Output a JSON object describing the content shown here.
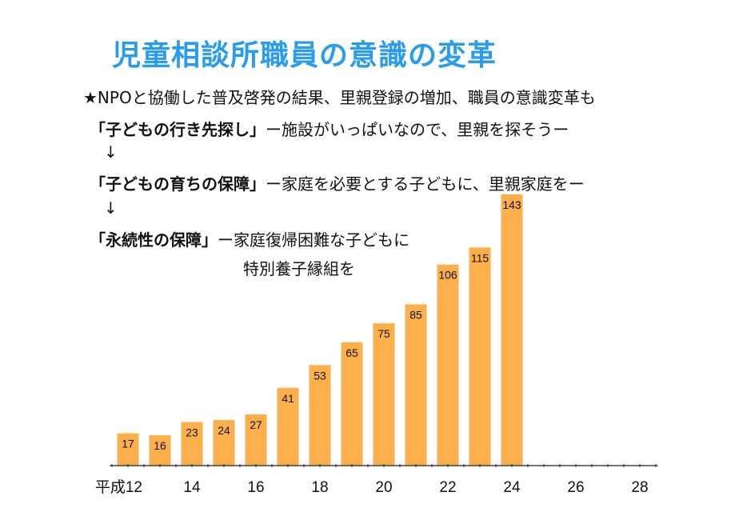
{
  "slide": {
    "title": "児童相談所職員の意識の変革",
    "intro": "★NPOと協働した普及啓発の結果、里親登録の増加、職員の意識変革も",
    "stages": [
      {
        "heading": "「子どもの行き先探し」",
        "text": "ー施設がいっぱいなので、里親を探そうー"
      },
      {
        "heading": "「子どもの育ちの保障」",
        "text": "ー家庭を必要とする子どもに、里親家庭をー"
      },
      {
        "heading": "「永続性の保障」",
        "text": "ー家庭復帰困難な子どもに",
        "text2": "特別養子縁組を"
      }
    ],
    "arrow": "↓"
  },
  "chart_data": {
    "type": "bar",
    "x": [
      12,
      13,
      14,
      15,
      16,
      17,
      18,
      19,
      20,
      21,
      22,
      23,
      24
    ],
    "values": [
      17,
      16,
      23,
      24,
      27,
      41,
      53,
      65,
      75,
      85,
      106,
      115,
      143
    ],
    "xtick_labels": [
      "平成12",
      "14",
      "16",
      "18",
      "20",
      "22",
      "24",
      "26",
      "28"
    ],
    "xticks": [
      12,
      14,
      16,
      18,
      20,
      22,
      24,
      26,
      28
    ],
    "xlim": [
      11.5,
      28.5
    ],
    "ylim": [
      0,
      143
    ],
    "bar_color": "#fdb04a",
    "title": "",
    "xlabel": "",
    "ylabel": ""
  }
}
